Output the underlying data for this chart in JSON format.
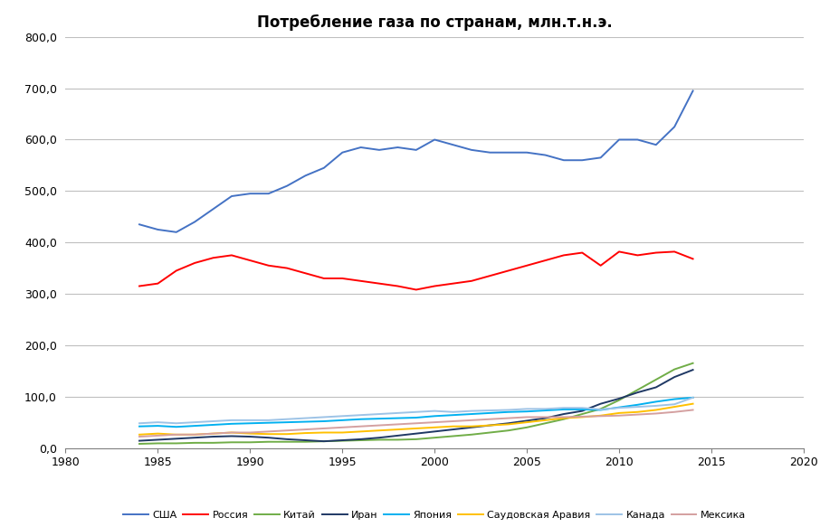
{
  "title": "Потребление газа по странам, млн.т.н.э.",
  "xlim": [
    1980,
    2020
  ],
  "ylim": [
    0,
    800
  ],
  "yticks": [
    0,
    100,
    200,
    300,
    400,
    500,
    600,
    700,
    800
  ],
  "xticks": [
    1980,
    1985,
    1990,
    1995,
    2000,
    2005,
    2010,
    2015,
    2020
  ],
  "series": {
    "США": {
      "color": "#4472c4",
      "years": [
        1984,
        1985,
        1986,
        1987,
        1988,
        1989,
        1990,
        1991,
        1992,
        1993,
        1994,
        1995,
        1996,
        1997,
        1998,
        1999,
        2000,
        2001,
        2002,
        2003,
        2004,
        2005,
        2006,
        2007,
        2008,
        2009,
        2010,
        2011,
        2012,
        2013,
        2014
      ],
      "values": [
        435,
        425,
        420,
        440,
        465,
        490,
        495,
        495,
        510,
        530,
        545,
        575,
        585,
        580,
        585,
        580,
        600,
        590,
        580,
        575,
        575,
        575,
        570,
        560,
        560,
        565,
        600,
        600,
        590,
        625,
        695
      ]
    },
    "Россия": {
      "color": "#ff0000",
      "years": [
        1984,
        1985,
        1986,
        1987,
        1988,
        1989,
        1990,
        1991,
        1992,
        1993,
        1994,
        1995,
        1996,
        1997,
        1998,
        1999,
        2000,
        2001,
        2002,
        2003,
        2004,
        2005,
        2006,
        2007,
        2008,
        2009,
        2010,
        2011,
        2012,
        2013,
        2014
      ],
      "values": [
        315,
        320,
        345,
        360,
        370,
        375,
        365,
        355,
        350,
        340,
        330,
        330,
        325,
        320,
        315,
        308,
        315,
        320,
        325,
        335,
        345,
        355,
        365,
        375,
        380,
        355,
        382,
        375,
        380,
        382,
        368
      ]
    },
    "Китай": {
      "color": "#70ad47",
      "years": [
        1984,
        1985,
        1986,
        1987,
        1988,
        1989,
        1990,
        1991,
        1992,
        1993,
        1994,
        1995,
        1996,
        1997,
        1998,
        1999,
        2000,
        2001,
        2002,
        2003,
        2004,
        2005,
        2006,
        2007,
        2008,
        2009,
        2010,
        2011,
        2012,
        2013,
        2014
      ],
      "values": [
        8,
        9,
        9,
        10,
        10,
        11,
        11,
        12,
        12,
        12,
        13,
        14,
        15,
        16,
        16,
        17,
        20,
        23,
        26,
        30,
        34,
        40,
        48,
        56,
        66,
        76,
        93,
        113,
        133,
        153,
        165
      ]
    },
    "Иран": {
      "color": "#1f3864",
      "years": [
        1984,
        1985,
        1986,
        1987,
        1988,
        1989,
        1990,
        1991,
        1992,
        1993,
        1994,
        1995,
        1996,
        1997,
        1998,
        1999,
        2000,
        2001,
        2002,
        2003,
        2004,
        2005,
        2006,
        2007,
        2008,
        2009,
        2010,
        2011,
        2012,
        2013,
        2014
      ],
      "values": [
        14,
        16,
        18,
        20,
        22,
        23,
        22,
        20,
        17,
        15,
        13,
        15,
        17,
        20,
        24,
        28,
        32,
        36,
        40,
        44,
        48,
        53,
        58,
        66,
        72,
        86,
        96,
        108,
        118,
        138,
        152
      ]
    },
    "Япония": {
      "color": "#00b0f0",
      "years": [
        1984,
        1985,
        1986,
        1987,
        1988,
        1989,
        1990,
        1991,
        1992,
        1993,
        1994,
        1995,
        1996,
        1997,
        1998,
        1999,
        2000,
        2001,
        2002,
        2003,
        2004,
        2005,
        2006,
        2007,
        2008,
        2009,
        2010,
        2011,
        2012,
        2013,
        2014
      ],
      "values": [
        42,
        43,
        41,
        43,
        45,
        47,
        48,
        49,
        50,
        51,
        52,
        54,
        56,
        57,
        58,
        59,
        62,
        64,
        66,
        68,
        70,
        71,
        73,
        75,
        75,
        74,
        79,
        84,
        90,
        95,
        98
      ]
    },
    "Саудовская Аравия": {
      "color": "#ffc000",
      "years": [
        1984,
        1985,
        1986,
        1987,
        1988,
        1989,
        1990,
        1991,
        1992,
        1993,
        1994,
        1995,
        1996,
        1997,
        1998,
        1999,
        2000,
        2001,
        2002,
        2003,
        2004,
        2005,
        2006,
        2007,
        2008,
        2009,
        2010,
        2011,
        2012,
        2013,
        2014
      ],
      "values": [
        26,
        28,
        26,
        26,
        28,
        30,
        28,
        27,
        27,
        29,
        30,
        30,
        32,
        34,
        36,
        38,
        40,
        42,
        42,
        44,
        46,
        50,
        54,
        58,
        60,
        63,
        68,
        70,
        74,
        80,
        86
      ]
    },
    "Канада": {
      "color": "#9dc3e6",
      "years": [
        1984,
        1985,
        1986,
        1987,
        1988,
        1989,
        1990,
        1991,
        1992,
        1993,
        1994,
        1995,
        1996,
        1997,
        1998,
        1999,
        2000,
        2001,
        2002,
        2003,
        2004,
        2005,
        2006,
        2007,
        2008,
        2009,
        2010,
        2011,
        2012,
        2013,
        2014
      ],
      "values": [
        48,
        50,
        48,
        50,
        52,
        54,
        54,
        54,
        56,
        58,
        60,
        62,
        64,
        66,
        68,
        70,
        72,
        70,
        72,
        73,
        74,
        76,
        76,
        78,
        78,
        75,
        78,
        80,
        82,
        85,
        98
      ]
    },
    "Мексика": {
      "color": "#d4a0a0",
      "years": [
        1984,
        1985,
        1986,
        1987,
        1988,
        1989,
        1990,
        1991,
        1992,
        1993,
        1994,
        1995,
        1996,
        1997,
        1998,
        1999,
        2000,
        2001,
        2002,
        2003,
        2004,
        2005,
        2006,
        2007,
        2008,
        2009,
        2010,
        2011,
        2012,
        2013,
        2014
      ],
      "values": [
        22,
        24,
        26,
        26,
        28,
        30,
        30,
        32,
        34,
        36,
        38,
        40,
        42,
        44,
        46,
        48,
        50,
        52,
        54,
        56,
        58,
        60,
        60,
        60,
        61,
        62,
        63,
        65,
        67,
        70,
        74
      ]
    }
  },
  "legend_order": [
    "США",
    "Россия",
    "Китай",
    "Иран",
    "Япония",
    "Саудовская Аравия",
    "Канада",
    "Мексика"
  ],
  "background_color": "#ffffff",
  "grid_color": "#bfbfbf"
}
